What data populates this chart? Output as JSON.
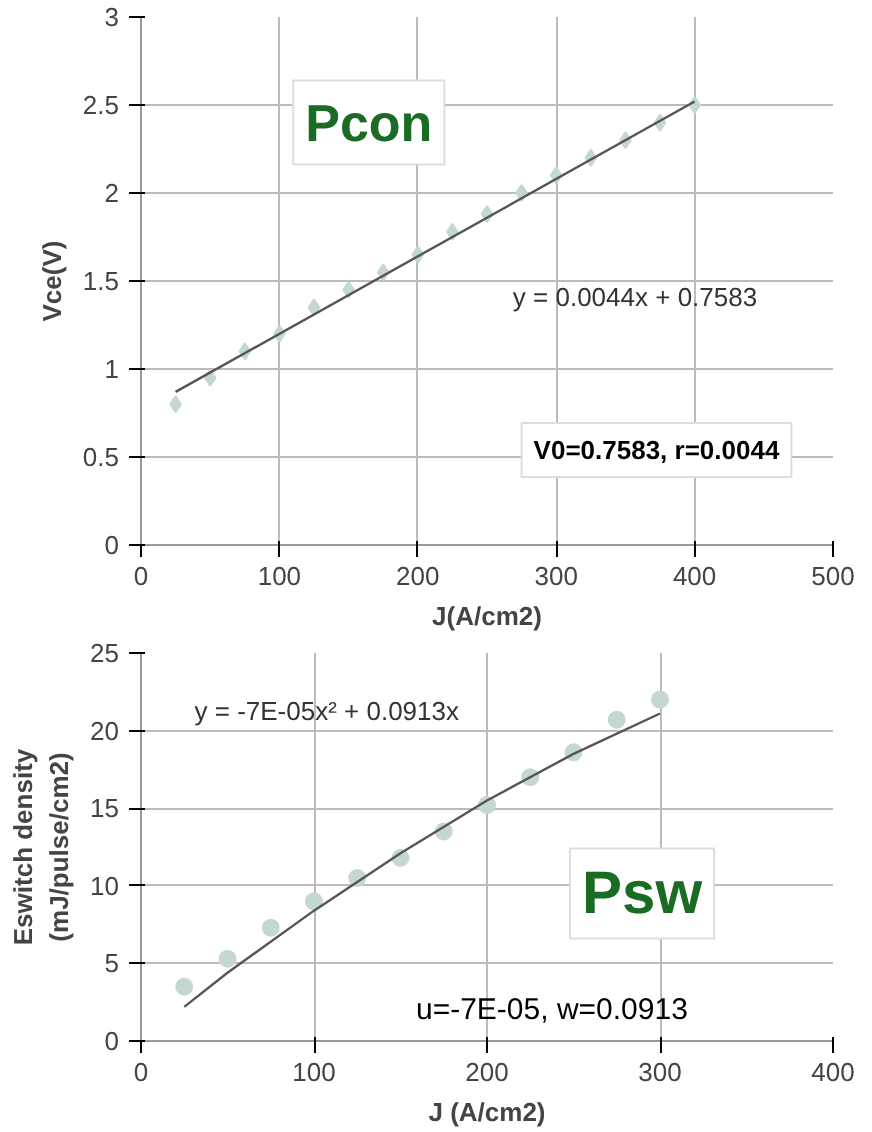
{
  "chart_data": [
    {
      "type": "scatter",
      "xlabel": "J(A/cm2)",
      "ylabel": "Vce(V)",
      "x": [
        25,
        50,
        75,
        100,
        125,
        150,
        175,
        200,
        225,
        250,
        275,
        300,
        325,
        350,
        375,
        400
      ],
      "series": [
        {
          "color": "#c4d8d0",
          "marker": "diamond",
          "values": [
            0.8,
            0.95,
            1.1,
            1.2,
            1.35,
            1.45,
            1.55,
            1.65,
            1.78,
            1.88,
            2.0,
            2.1,
            2.2,
            2.3,
            2.4,
            2.5
          ]
        },
        {
          "type": "line",
          "color": "#555555",
          "marker": "none",
          "x": [
            25,
            400
          ],
          "values": [
            0.87,
            2.52
          ]
        }
      ],
      "xlim": [
        0,
        500
      ],
      "xticks": [
        0,
        100,
        200,
        300,
        400,
        500
      ],
      "ylim": [
        0,
        3
      ],
      "yticks": [
        0,
        0.5,
        1,
        1.5,
        2,
        2.5,
        3
      ],
      "grid": true,
      "annotations": [
        "Pcon",
        "y = 0.0044x + 0.7583",
        "V0=0.7583, r=0.0044"
      ]
    },
    {
      "type": "scatter",
      "xlabel": "J (A/cm2)",
      "ylabel": "Eswitch density\n(mJ/pulse/cm2)",
      "x": [
        25,
        50,
        75,
        100,
        125,
        150,
        175,
        200,
        225,
        250,
        275,
        300
      ],
      "series": [
        {
          "color": "#c4d8d0",
          "marker": "circle",
          "values": [
            3.5,
            5.3,
            7.3,
            9.0,
            10.5,
            11.8,
            13.5,
            15.2,
            17.0,
            18.6,
            20.7,
            22.0
          ]
        },
        {
          "type": "line",
          "color": "#555555",
          "marker": "none",
          "x": [
            25,
            50,
            100,
            150,
            200,
            250,
            300
          ],
          "values": [
            2.2,
            4.4,
            8.4,
            12.1,
            15.5,
            18.5,
            21.1
          ]
        }
      ],
      "xlim": [
        0,
        400
      ],
      "xticks": [
        0,
        100,
        200,
        300,
        400
      ],
      "ylim": [
        0,
        25
      ],
      "yticks": [
        0,
        5,
        10,
        15,
        20,
        25
      ],
      "grid": true,
      "annotations": [
        "y = -7E-05x² + 0.0913x",
        "Psw",
        "u=-7E-05, w=0.0913"
      ]
    }
  ]
}
